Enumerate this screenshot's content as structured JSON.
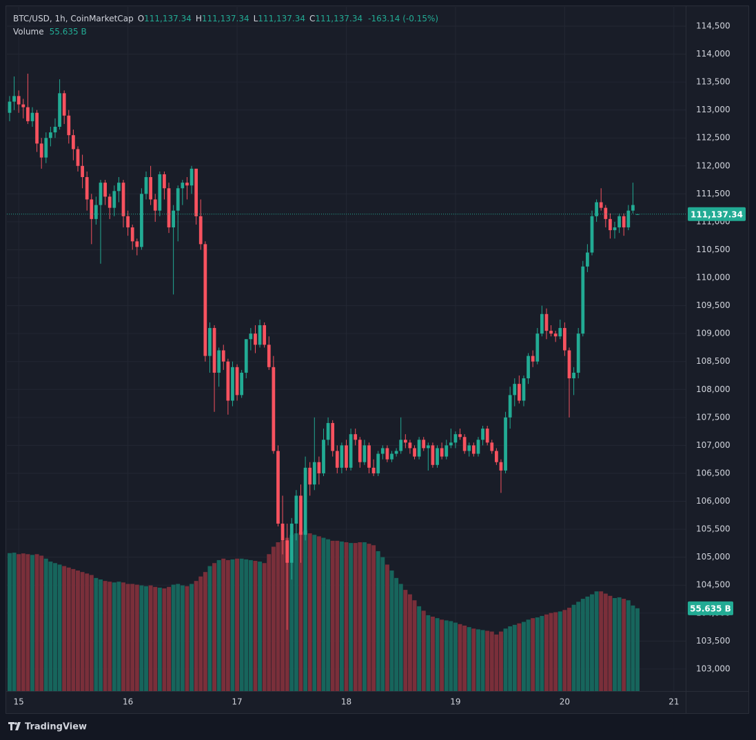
{
  "header": {
    "symbol": "BTC/USD, 1h, CoinMarketCap",
    "fields": [
      {
        "label": "O",
        "value": "111,137.34"
      },
      {
        "label": "H",
        "value": "111,137.34"
      },
      {
        "label": "L",
        "value": "111,137.34"
      },
      {
        "label": "C",
        "value": "111,137.34"
      }
    ],
    "change": "-163.14 (-0.15%)",
    "volume_label": "Volume",
    "volume_value": "55.635 B"
  },
  "footer": {
    "brand": "TradingView"
  },
  "chart_data": {
    "type": "candlestick",
    "up_color": "#22ab94",
    "down_color": "#f7525f",
    "volume_up_color": "#17655c",
    "volume_down_color": "#7a2f3a",
    "xlim": [
      -0.6,
      148.6
    ],
    "xticks": [
      {
        "value": 2,
        "label": "15"
      },
      {
        "value": 26,
        "label": "16"
      },
      {
        "value": 50,
        "label": "17"
      },
      {
        "value": 74,
        "label": "18"
      },
      {
        "value": 98,
        "label": "19"
      },
      {
        "value": 122,
        "label": "20"
      },
      {
        "value": 146,
        "label": "21"
      }
    ],
    "ylim": [
      102604,
      114845
    ],
    "yticks": [
      {
        "value": 103000,
        "label": "103,000"
      },
      {
        "value": 103500,
        "label": "103,500"
      },
      {
        "value": 104000,
        "label": "104,000"
      },
      {
        "value": 104500,
        "label": "104,500"
      },
      {
        "value": 105000,
        "label": "105,000"
      },
      {
        "value": 105500,
        "label": "105,500"
      },
      {
        "value": 106000,
        "label": "106,000"
      },
      {
        "value": 106500,
        "label": "106,500"
      },
      {
        "value": 107000,
        "label": "107,000"
      },
      {
        "value": 107500,
        "label": "107,500"
      },
      {
        "value": 108000,
        "label": "108,000"
      },
      {
        "value": 108500,
        "label": "108,500"
      },
      {
        "value": 109000,
        "label": "109,000"
      },
      {
        "value": 109500,
        "label": "109,500"
      },
      {
        "value": 110000,
        "label": "110,000"
      },
      {
        "value": 110500,
        "label": "110,500"
      },
      {
        "value": 111000,
        "label": "111,000"
      },
      {
        "value": 111500,
        "label": "111,500"
      },
      {
        "value": 112000,
        "label": "112,000"
      },
      {
        "value": 112500,
        "label": "112,500"
      },
      {
        "value": 113000,
        "label": "113,000"
      },
      {
        "value": 113500,
        "label": "113,500"
      },
      {
        "value": 114000,
        "label": "114,000"
      },
      {
        "value": 114500,
        "label": "114,500"
      }
    ],
    "grid": true,
    "last_price": {
      "value": 111137.34,
      "label": "111,137.34"
    },
    "volume_lim": [
      0,
      100
    ],
    "ohlc": [
      [
        112950,
        113250,
        112800,
        113150
      ],
      [
        113150,
        113600,
        113000,
        113250
      ],
      [
        113250,
        113350,
        112950,
        113100
      ],
      [
        113100,
        113200,
        112850,
        113050
      ],
      [
        113050,
        113650,
        112750,
        112800
      ],
      [
        112800,
        113050,
        112700,
        112950
      ],
      [
        112950,
        113000,
        112250,
        112400
      ],
      [
        112400,
        112500,
        111950,
        112150
      ],
      [
        112150,
        112600,
        112050,
        112500
      ],
      [
        112500,
        112700,
        112350,
        112600
      ],
      [
        112600,
        112850,
        112500,
        112700
      ],
      [
        112700,
        113550,
        112650,
        113300
      ],
      [
        113300,
        113350,
        112750,
        112900
      ],
      [
        112900,
        113000,
        112400,
        112550
      ],
      [
        112550,
        112650,
        112100,
        112300
      ],
      [
        112300,
        112350,
        111900,
        112000
      ],
      [
        112000,
        112200,
        111600,
        111800
      ],
      [
        111800,
        111900,
        111200,
        111400
      ],
      [
        111400,
        111500,
        110600,
        111050
      ],
      [
        111050,
        111450,
        110950,
        111300
      ],
      [
        111300,
        111750,
        110250,
        111700
      ],
      [
        111700,
        111750,
        111300,
        111450
      ],
      [
        111450,
        111500,
        111050,
        111250
      ],
      [
        111250,
        111650,
        111100,
        111550
      ],
      [
        111550,
        111800,
        111350,
        111700
      ],
      [
        111700,
        111750,
        110900,
        111100
      ],
      [
        111100,
        111200,
        110750,
        110900
      ],
      [
        110900,
        110950,
        110500,
        110650
      ],
      [
        110650,
        110700,
        110400,
        110550
      ],
      [
        110550,
        111600,
        110500,
        111500
      ],
      [
        111500,
        111900,
        111400,
        111800
      ],
      [
        111800,
        112000,
        111300,
        111400
      ],
      [
        111400,
        111500,
        111000,
        111200
      ],
      [
        111200,
        111900,
        111100,
        111850
      ],
      [
        111850,
        111900,
        111400,
        111600
      ],
      [
        111600,
        111700,
        110800,
        110900
      ],
      [
        110900,
        111300,
        109700,
        111200
      ],
      [
        111200,
        111650,
        110650,
        111600
      ],
      [
        111600,
        111750,
        111300,
        111700
      ],
      [
        111700,
        111800,
        111400,
        111650
      ],
      [
        111650,
        112000,
        111500,
        111950
      ],
      [
        111950,
        111950,
        110950,
        111100
      ],
      [
        111100,
        111400,
        110500,
        110600
      ],
      [
        110600,
        110650,
        108500,
        108600
      ],
      [
        108600,
        109200,
        108300,
        109100
      ],
      [
        109100,
        109150,
        107600,
        108300
      ],
      [
        108300,
        108750,
        108050,
        108700
      ],
      [
        108700,
        108800,
        108350,
        108500
      ],
      [
        108500,
        108550,
        107550,
        107800
      ],
      [
        107800,
        108500,
        107700,
        108400
      ],
      [
        108400,
        108450,
        107800,
        107900
      ],
      [
        107900,
        108350,
        107850,
        108300
      ],
      [
        108300,
        108900,
        108200,
        108900
      ],
      [
        108900,
        109100,
        108700,
        109000
      ],
      [
        109000,
        109150,
        108650,
        108800
      ],
      [
        108800,
        109250,
        108750,
        109150
      ],
      [
        109150,
        109200,
        108750,
        108800
      ],
      [
        108800,
        108950,
        108350,
        108400
      ],
      [
        108400,
        108600,
        106850,
        106900
      ],
      [
        106900,
        107000,
        105550,
        105600
      ],
      [
        105600,
        106100,
        105050,
        105300
      ],
      [
        105300,
        105600,
        103700,
        104900
      ],
      [
        104900,
        105700,
        104600,
        105600
      ],
      [
        105600,
        106200,
        105300,
        106100
      ],
      [
        106100,
        106300,
        104900,
        105400
      ],
      [
        105400,
        106800,
        105300,
        106600
      ],
      [
        106600,
        106700,
        106100,
        106300
      ],
      [
        106300,
        107500,
        106200,
        106700
      ],
      [
        106700,
        106800,
        106300,
        106500
      ],
      [
        106500,
        107300,
        106450,
        107100
      ],
      [
        107100,
        107500,
        107000,
        107400
      ],
      [
        107400,
        107450,
        106800,
        106900
      ],
      [
        106900,
        107000,
        106500,
        106600
      ],
      [
        106600,
        107050,
        106500,
        107000
      ],
      [
        107000,
        107100,
        106550,
        106600
      ],
      [
        106600,
        107300,
        106550,
        107200
      ],
      [
        107200,
        107300,
        107000,
        107100
      ],
      [
        107100,
        107150,
        106600,
        106700
      ],
      [
        106700,
        107100,
        106650,
        107000
      ],
      [
        107000,
        107050,
        106500,
        106600
      ],
      [
        106600,
        106750,
        106450,
        106500
      ],
      [
        106500,
        106900,
        106450,
        106850
      ],
      [
        106850,
        107000,
        106750,
        106950
      ],
      [
        106950,
        107000,
        106700,
        106750
      ],
      [
        106750,
        106900,
        106700,
        106850
      ],
      [
        106850,
        106950,
        106800,
        106900
      ],
      [
        106900,
        107500,
        106850,
        107100
      ],
      [
        107100,
        107200,
        106950,
        107050
      ],
      [
        107050,
        107100,
        106850,
        106950
      ],
      [
        106950,
        107000,
        106750,
        106800
      ],
      [
        106800,
        107150,
        106750,
        107100
      ],
      [
        107100,
        107150,
        106900,
        106950
      ],
      [
        106950,
        107050,
        106550,
        107000
      ],
      [
        107000,
        107050,
        106600,
        106650
      ],
      [
        106650,
        107000,
        106600,
        106950
      ],
      [
        106950,
        107050,
        106750,
        106800
      ],
      [
        106800,
        107100,
        106750,
        107000
      ],
      [
        107000,
        107300,
        106950,
        107050
      ],
      [
        107050,
        107250,
        106950,
        107200
      ],
      [
        107200,
        107300,
        107100,
        107150
      ],
      [
        107150,
        107200,
        106850,
        106900
      ],
      [
        106900,
        107050,
        106800,
        107000
      ],
      [
        107000,
        107050,
        106800,
        106850
      ],
      [
        106850,
        107150,
        106800,
        107100
      ],
      [
        107100,
        107350,
        107000,
        107300
      ],
      [
        107300,
        107350,
        107000,
        107050
      ],
      [
        107050,
        107100,
        106850,
        106900
      ],
      [
        106900,
        106950,
        106650,
        106700
      ],
      [
        106700,
        106750,
        106150,
        106550
      ],
      [
        106550,
        107600,
        106500,
        107500
      ],
      [
        107500,
        108050,
        107300,
        107900
      ],
      [
        107900,
        108200,
        107700,
        108100
      ],
      [
        108100,
        108250,
        107750,
        107800
      ],
      [
        107800,
        108250,
        107700,
        108200
      ],
      [
        108200,
        108650,
        108100,
        108600
      ],
      [
        108600,
        108700,
        108400,
        108500
      ],
      [
        108500,
        109100,
        108450,
        109000
      ],
      [
        109000,
        109500,
        108950,
        109350
      ],
      [
        109350,
        109450,
        108900,
        109050
      ],
      [
        109050,
        109150,
        108950,
        109000
      ],
      [
        109000,
        109050,
        108850,
        108950
      ],
      [
        108950,
        109250,
        108900,
        109100
      ],
      [
        109100,
        109200,
        108600,
        108700
      ],
      [
        108700,
        108750,
        107500,
        108200
      ],
      [
        108200,
        108400,
        107900,
        108300
      ],
      [
        108300,
        109100,
        108200,
        109000
      ],
      [
        109000,
        110300,
        108950,
        110200
      ],
      [
        110200,
        110600,
        110100,
        110450
      ],
      [
        110450,
        111200,
        110400,
        111100
      ],
      [
        111100,
        111400,
        111000,
        111350
      ],
      [
        111350,
        111600,
        111200,
        111250
      ],
      [
        111250,
        111300,
        110900,
        111050
      ],
      [
        111050,
        111150,
        110700,
        110850
      ],
      [
        110850,
        111000,
        110700,
        110900
      ],
      [
        110900,
        111150,
        110800,
        111100
      ],
      [
        111100,
        111150,
        110750,
        110900
      ],
      [
        110900,
        111300,
        110850,
        111200
      ],
      [
        111200,
        111700,
        111150,
        111300.48
      ],
      [
        111137.34,
        111137.34,
        111137.34,
        111137.34
      ]
    ],
    "volumes": [
      92.7,
      93,
      92,
      92.5,
      92,
      91.5,
      92,
      91,
      89,
      87,
      86,
      85,
      84,
      83,
      82,
      81,
      80,
      79,
      78,
      76,
      75,
      74,
      73.5,
      73,
      73.5,
      73,
      72,
      72,
      71.5,
      71,
      70.5,
      71,
      70,
      69.5,
      69,
      70,
      71.5,
      72,
      71,
      70.5,
      72,
      74,
      77,
      80,
      84,
      86,
      88,
      89,
      88,
      88.5,
      89,
      89,
      88.5,
      88,
      87.5,
      87,
      86,
      92,
      97,
      100,
      101,
      103,
      105,
      106,
      107,
      108,
      106,
      105,
      104,
      103,
      102,
      101,
      101,
      100.5,
      100,
      99.5,
      99.5,
      100,
      100,
      99,
      98,
      94,
      90,
      85,
      81,
      76,
      72,
      68,
      65,
      61,
      57,
      54,
      51,
      50,
      49,
      48,
      47.5,
      47,
      46,
      45,
      44,
      43,
      42,
      41.5,
      41,
      40.5,
      40,
      38,
      40,
      42,
      43.5,
      44.5,
      45.5,
      46.5,
      48,
      49,
      49.5,
      50.5,
      51.5,
      52.5,
      53,
      53.5,
      54.5,
      56,
      58,
      60,
      62,
      63.5,
      65,
      67,
      67,
      65.5,
      64,
      62.5,
      63,
      62,
      61,
      57.5,
      55.635
    ]
  }
}
